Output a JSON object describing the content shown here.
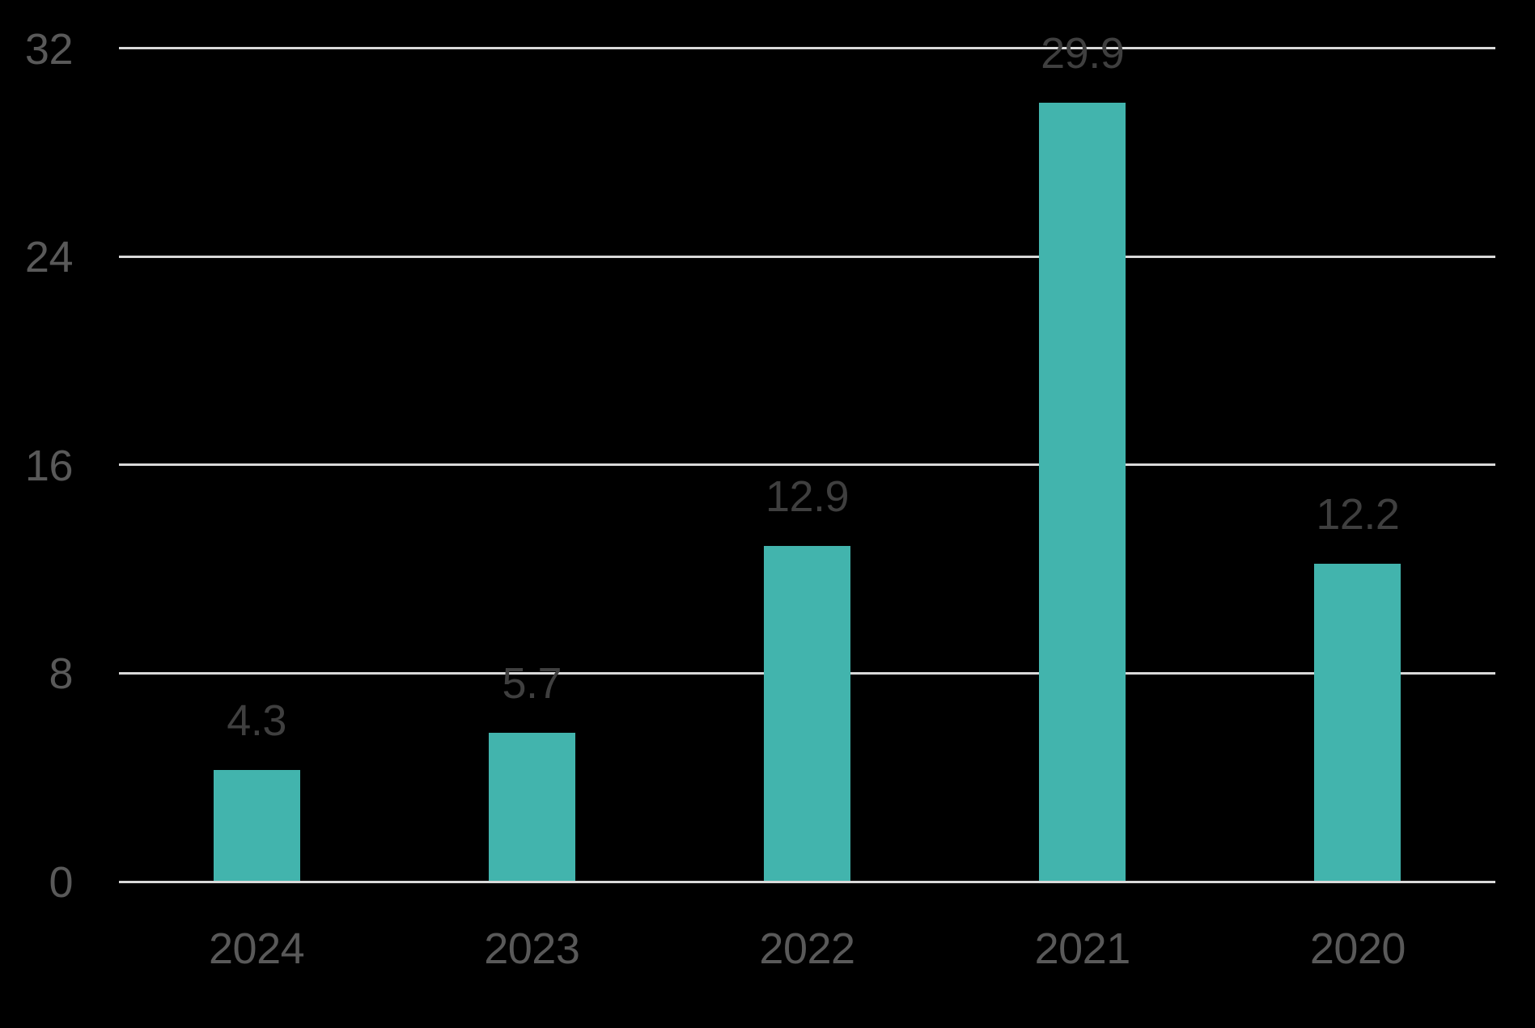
{
  "chart_data": {
    "type": "bar",
    "title": "",
    "xlabel": "",
    "ylabel": "",
    "categories": [
      "2024",
      "2023",
      "2022",
      "2021",
      "2020"
    ],
    "values": [
      4.3,
      5.7,
      12.9,
      29.9,
      12.2
    ],
    "data_labels": [
      "4.3",
      "5.7",
      "12.9",
      "29.9",
      "12.2"
    ],
    "yticks": [
      0,
      8,
      16,
      24,
      32
    ],
    "ytick_labels": [
      "0",
      "8",
      "16",
      "24",
      "32"
    ],
    "ylim": [
      0,
      32
    ],
    "grid": "horizontal-only",
    "legend": "none",
    "colors": {
      "background": "#000000",
      "bar": "#42B4AD",
      "gridline": "#D9D9D9",
      "axis_tick_label": "#595959",
      "data_label": "#3F3F3F"
    }
  }
}
